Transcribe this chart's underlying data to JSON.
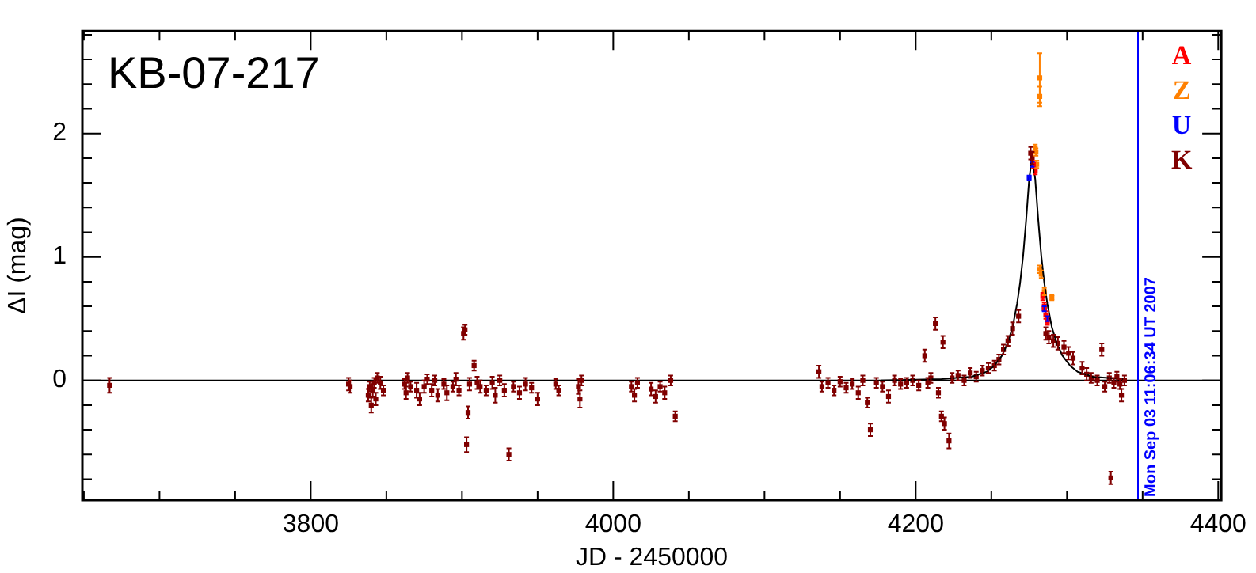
{
  "chart_data": {
    "type": "scatter",
    "title": "KB-07-217",
    "xlabel": "JD - 2450000",
    "ylabel": "ΔI (mag)",
    "xlim": [
      3649,
      4402
    ],
    "ylim": [
      -0.97,
      2.83
    ],
    "xticks": [
      {
        "value": 3650,
        "label": null
      },
      {
        "value": 3700,
        "label": null
      },
      {
        "value": 3750,
        "label": null
      },
      3800,
      {
        "value": 3850,
        "label": null
      },
      {
        "value": 3900,
        "label": null
      },
      {
        "value": 3950,
        "label": null
      },
      4000,
      {
        "value": 4050,
        "label": null
      },
      {
        "value": 4100,
        "label": null
      },
      {
        "value": 4150,
        "label": null
      },
      4200,
      {
        "value": 4250,
        "label": null
      },
      {
        "value": 4300,
        "label": null
      },
      {
        "value": 4350,
        "label": null
      },
      4400
    ],
    "yticks": [
      {
        "value": -0.8,
        "label": null
      },
      {
        "value": -0.6,
        "label": null
      },
      {
        "value": -0.4,
        "label": null
      },
      {
        "value": -0.2,
        "label": null
      },
      0,
      {
        "value": 0.2,
        "label": null
      },
      {
        "value": 0.4,
        "label": null
      },
      {
        "value": 0.6,
        "label": null
      },
      {
        "value": 0.8,
        "label": null
      },
      1,
      {
        "value": 1.2,
        "label": null
      },
      {
        "value": 1.4,
        "label": null
      },
      {
        "value": 1.6,
        "label": null
      },
      {
        "value": 1.8,
        "label": null
      },
      2,
      {
        "value": 2.2,
        "label": null
      },
      {
        "value": 2.4,
        "label": null
      },
      {
        "value": 2.6,
        "label": null
      },
      {
        "value": 2.8,
        "label": null
      }
    ],
    "grid": false,
    "legend": "right",
    "marker": "square",
    "ref_lines": [
      {
        "axis": "y",
        "value": 0,
        "color": "#000000"
      },
      {
        "axis": "x",
        "value": 4346.96,
        "color": "#0000ff"
      }
    ],
    "annotations": [
      "Mon Sep 03 11:06:34 UT 2007"
    ],
    "series": [
      {
        "type": "line",
        "color": "#000000",
        "marker": "none",
        "x": [
          4177,
          4217,
          4237,
          4247,
          4252,
          4257,
          4261,
          4264,
          4267,
          4269,
          4271,
          4273,
          4275,
          4277,
          4279,
          4281,
          4283,
          4285,
          4287,
          4290,
          4293,
          4297,
          4302,
          4307,
          4317,
          4337
        ],
        "values": [
          0.0,
          0.01,
          0.03,
          0.07,
          0.12,
          0.2,
          0.31,
          0.43,
          0.62,
          0.79,
          1.01,
          1.3,
          1.63,
          1.82,
          1.63,
          1.3,
          1.01,
          0.79,
          0.62,
          0.43,
          0.31,
          0.2,
          0.12,
          0.07,
          0.03,
          0.01
        ]
      },
      {
        "name": "A",
        "color": "#ff0000",
        "x": [
          4278,
          4279,
          4284,
          4285,
          4286,
          4287
        ],
        "values": [
          1.75,
          1.7,
          0.68,
          0.6,
          0.53,
          0.48
        ],
        "errors": [
          0.03,
          0.03,
          0.03,
          0.03,
          0.03,
          0.03
        ]
      },
      {
        "name": "Z",
        "color": "#ff8000",
        "x": [
          4282,
          4282,
          4279,
          4279.5,
          4280,
          4282,
          4283,
          4285,
          4290
        ],
        "values": [
          2.45,
          2.3,
          1.88,
          1.85,
          1.75,
          0.9,
          0.86,
          0.72,
          0.67
        ],
        "errors": [
          0.2,
          0.08,
          0.03,
          0.03,
          0.03,
          0.03,
          0.03,
          0.03,
          0.02
        ]
      },
      {
        "name": "U",
        "color": "#0000ff",
        "x": [
          4275,
          4277,
          4285,
          4287
        ],
        "values": [
          1.64,
          1.75,
          0.58,
          0.5
        ],
        "errors": [
          0.02,
          0.02,
          0.02,
          0.02
        ]
      },
      {
        "name": "K",
        "color": "#800000",
        "x": [
          3667,
          3825,
          3826,
          3838,
          3839,
          3840,
          3841,
          3842,
          3843,
          3844,
          3846,
          3848,
          3862,
          3863,
          3864,
          3866,
          3870,
          3872,
          3875,
          3877,
          3880,
          3882,
          3884,
          3888,
          3890,
          3894,
          3896,
          3898,
          3901,
          3902,
          3903,
          3904,
          3905,
          3908,
          3910,
          3912,
          3916,
          3920,
          3922,
          3925,
          3928,
          3931,
          3934,
          3938,
          3942,
          3946,
          3950,
          3962,
          3964,
          3977,
          3978,
          3979,
          4012,
          4014,
          4016,
          4025,
          4028,
          4031,
          4034,
          4038,
          4041,
          4136,
          4138,
          4142,
          4146,
          4150,
          4154,
          4158,
          4162,
          4165,
          4168,
          4170,
          4174,
          4178,
          4182,
          4186,
          4190,
          4194,
          4198,
          4202,
          4206,
          4208,
          4210,
          4213,
          4215,
          4217,
          4218,
          4219,
          4222,
          4224,
          4228,
          4232,
          4236,
          4240,
          4244,
          4248,
          4252,
          4255,
          4258,
          4261,
          4264,
          4268,
          4276,
          4277,
          4286,
          4288,
          4291,
          4294,
          4298,
          4301,
          4304,
          4310,
          4313,
          4316,
          4320,
          4323,
          4325,
          4328,
          4329,
          4331,
          4333,
          4335,
          4336,
          4338
        ],
        "values": [
          -0.04,
          -0.03,
          -0.05,
          -0.12,
          -0.05,
          -0.2,
          -0.08,
          -0.02,
          -0.15,
          0.02,
          -0.02,
          -0.08,
          -0.03,
          -0.1,
          0.02,
          -0.05,
          -0.08,
          -0.15,
          -0.05,
          0.01,
          -0.08,
          0.0,
          -0.12,
          -0.03,
          -0.1,
          -0.05,
          0.01,
          -0.08,
          0.38,
          0.41,
          -0.52,
          -0.26,
          -0.03,
          0.12,
          -0.02,
          -0.05,
          -0.08,
          -0.02,
          -0.12,
          0.0,
          -0.08,
          -0.6,
          -0.05,
          -0.1,
          -0.03,
          -0.06,
          -0.15,
          -0.03,
          -0.08,
          -0.05,
          -0.15,
          0.0,
          -0.05,
          -0.12,
          -0.02,
          -0.07,
          -0.13,
          -0.05,
          -0.1,
          0.0,
          -0.29,
          0.07,
          -0.05,
          -0.02,
          -0.08,
          -0.01,
          -0.06,
          -0.03,
          -0.1,
          0.0,
          -0.18,
          -0.4,
          -0.02,
          -0.05,
          -0.13,
          0.0,
          -0.03,
          -0.02,
          0.0,
          -0.04,
          0.2,
          -0.02,
          0.02,
          0.46,
          -0.1,
          -0.29,
          0.31,
          -0.35,
          -0.49,
          0.02,
          0.04,
          0.0,
          0.06,
          0.03,
          0.08,
          0.1,
          0.12,
          0.17,
          0.25,
          0.32,
          0.42,
          0.52,
          1.84,
          1.8,
          0.38,
          0.35,
          0.32,
          0.3,
          0.27,
          0.22,
          0.18,
          0.1,
          0.05,
          0.02,
          0.0,
          0.25,
          -0.05,
          0.02,
          -0.79,
          -0.02,
          0.03,
          -0.03,
          -0.12,
          0.0
        ],
        "errors": [
          0.06,
          0.05,
          0.05,
          0.05,
          0.04,
          0.06,
          0.05,
          0.04,
          0.05,
          0.04,
          0.05,
          0.04,
          0.04,
          0.05,
          0.04,
          0.04,
          0.06,
          0.05,
          0.05,
          0.04,
          0.05,
          0.04,
          0.05,
          0.04,
          0.06,
          0.04,
          0.05,
          0.04,
          0.05,
          0.04,
          0.06,
          0.05,
          0.05,
          0.04,
          0.05,
          0.05,
          0.04,
          0.05,
          0.06,
          0.04,
          0.05,
          0.05,
          0.04,
          0.05,
          0.05,
          0.04,
          0.05,
          0.04,
          0.04,
          0.06,
          0.07,
          0.04,
          0.04,
          0.05,
          0.04,
          0.05,
          0.05,
          0.04,
          0.05,
          0.04,
          0.04,
          0.05,
          0.04,
          0.04,
          0.04,
          0.04,
          0.04,
          0.04,
          0.05,
          0.04,
          0.04,
          0.05,
          0.04,
          0.04,
          0.05,
          0.04,
          0.04,
          0.04,
          0.04,
          0.04,
          0.05,
          0.04,
          0.04,
          0.05,
          0.04,
          0.04,
          0.05,
          0.05,
          0.06,
          0.04,
          0.04,
          0.04,
          0.04,
          0.04,
          0.04,
          0.04,
          0.04,
          0.04,
          0.04,
          0.04,
          0.05,
          0.05,
          0.05,
          0.05,
          0.05,
          0.05,
          0.05,
          0.05,
          0.05,
          0.05,
          0.05,
          0.05,
          0.05,
          0.04,
          0.04,
          0.05,
          0.04,
          0.04,
          0.05,
          0.04,
          0.04,
          0.04,
          0.05,
          0.04
        ]
      }
    ]
  }
}
